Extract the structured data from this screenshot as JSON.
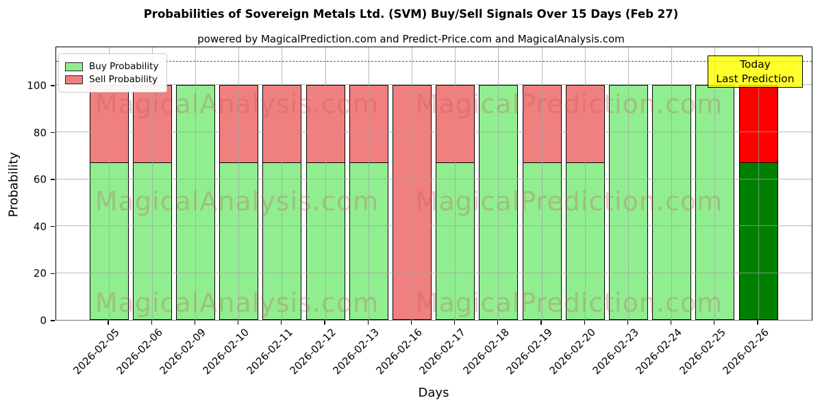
{
  "figure": {
    "title": "Probabilities of Sovereign Metals Ltd. (SVM) Buy/Sell Signals Over 15 Days (Feb 27)",
    "subtitle": "powered by MagicalPrediction.com and Predict-Price.com and MagicalAnalysis.com"
  },
  "legend": {
    "items": [
      {
        "label": "Buy Probability",
        "color": "#90ee90"
      },
      {
        "label": "Sell Probability",
        "color": "#f08080"
      }
    ]
  },
  "annotation": {
    "line1": "Today",
    "line2": "Last Prediction",
    "bg_color": "#ffff00"
  },
  "watermarks": {
    "left_text": "MagicalAnalysis.com",
    "right_text": "MagicalPrediction.com"
  },
  "chart_data": {
    "type": "bar",
    "stacked": true,
    "title": "Probabilities of Sovereign Metals Ltd. (SVM) Buy/Sell Signals Over 15 Days (Feb 27)",
    "xlabel": "Days",
    "ylabel": "Probability",
    "categories": [
      "2026-02-05",
      "2026-02-06",
      "2026-02-09",
      "2026-02-10",
      "2026-02-11",
      "2026-02-12",
      "2026-02-13",
      "2026-02-16",
      "2026-02-17",
      "2026-02-18",
      "2026-02-19",
      "2026-02-20",
      "2026-02-23",
      "2026-02-24",
      "2026-02-25",
      "2026-02-26"
    ],
    "series": [
      {
        "name": "Buy Probability",
        "color": "#90ee90",
        "values": [
          67,
          67,
          100,
          67,
          67,
          67,
          67,
          0,
          67,
          100,
          67,
          67,
          100,
          100,
          100,
          67
        ]
      },
      {
        "name": "Sell Probability",
        "color": "#f08080",
        "values": [
          33,
          33,
          0,
          33,
          33,
          33,
          33,
          100,
          33,
          0,
          33,
          33,
          0,
          0,
          0,
          33
        ]
      }
    ],
    "today_index": 15,
    "today_colors": {
      "buy": "#008000",
      "sell": "#ff0000"
    },
    "ylim": [
      0,
      116.6
    ],
    "yticks": [
      0,
      20,
      40,
      60,
      80,
      100
    ],
    "dashed_line_y": 110,
    "grid": true,
    "legend_position": "upper left"
  }
}
